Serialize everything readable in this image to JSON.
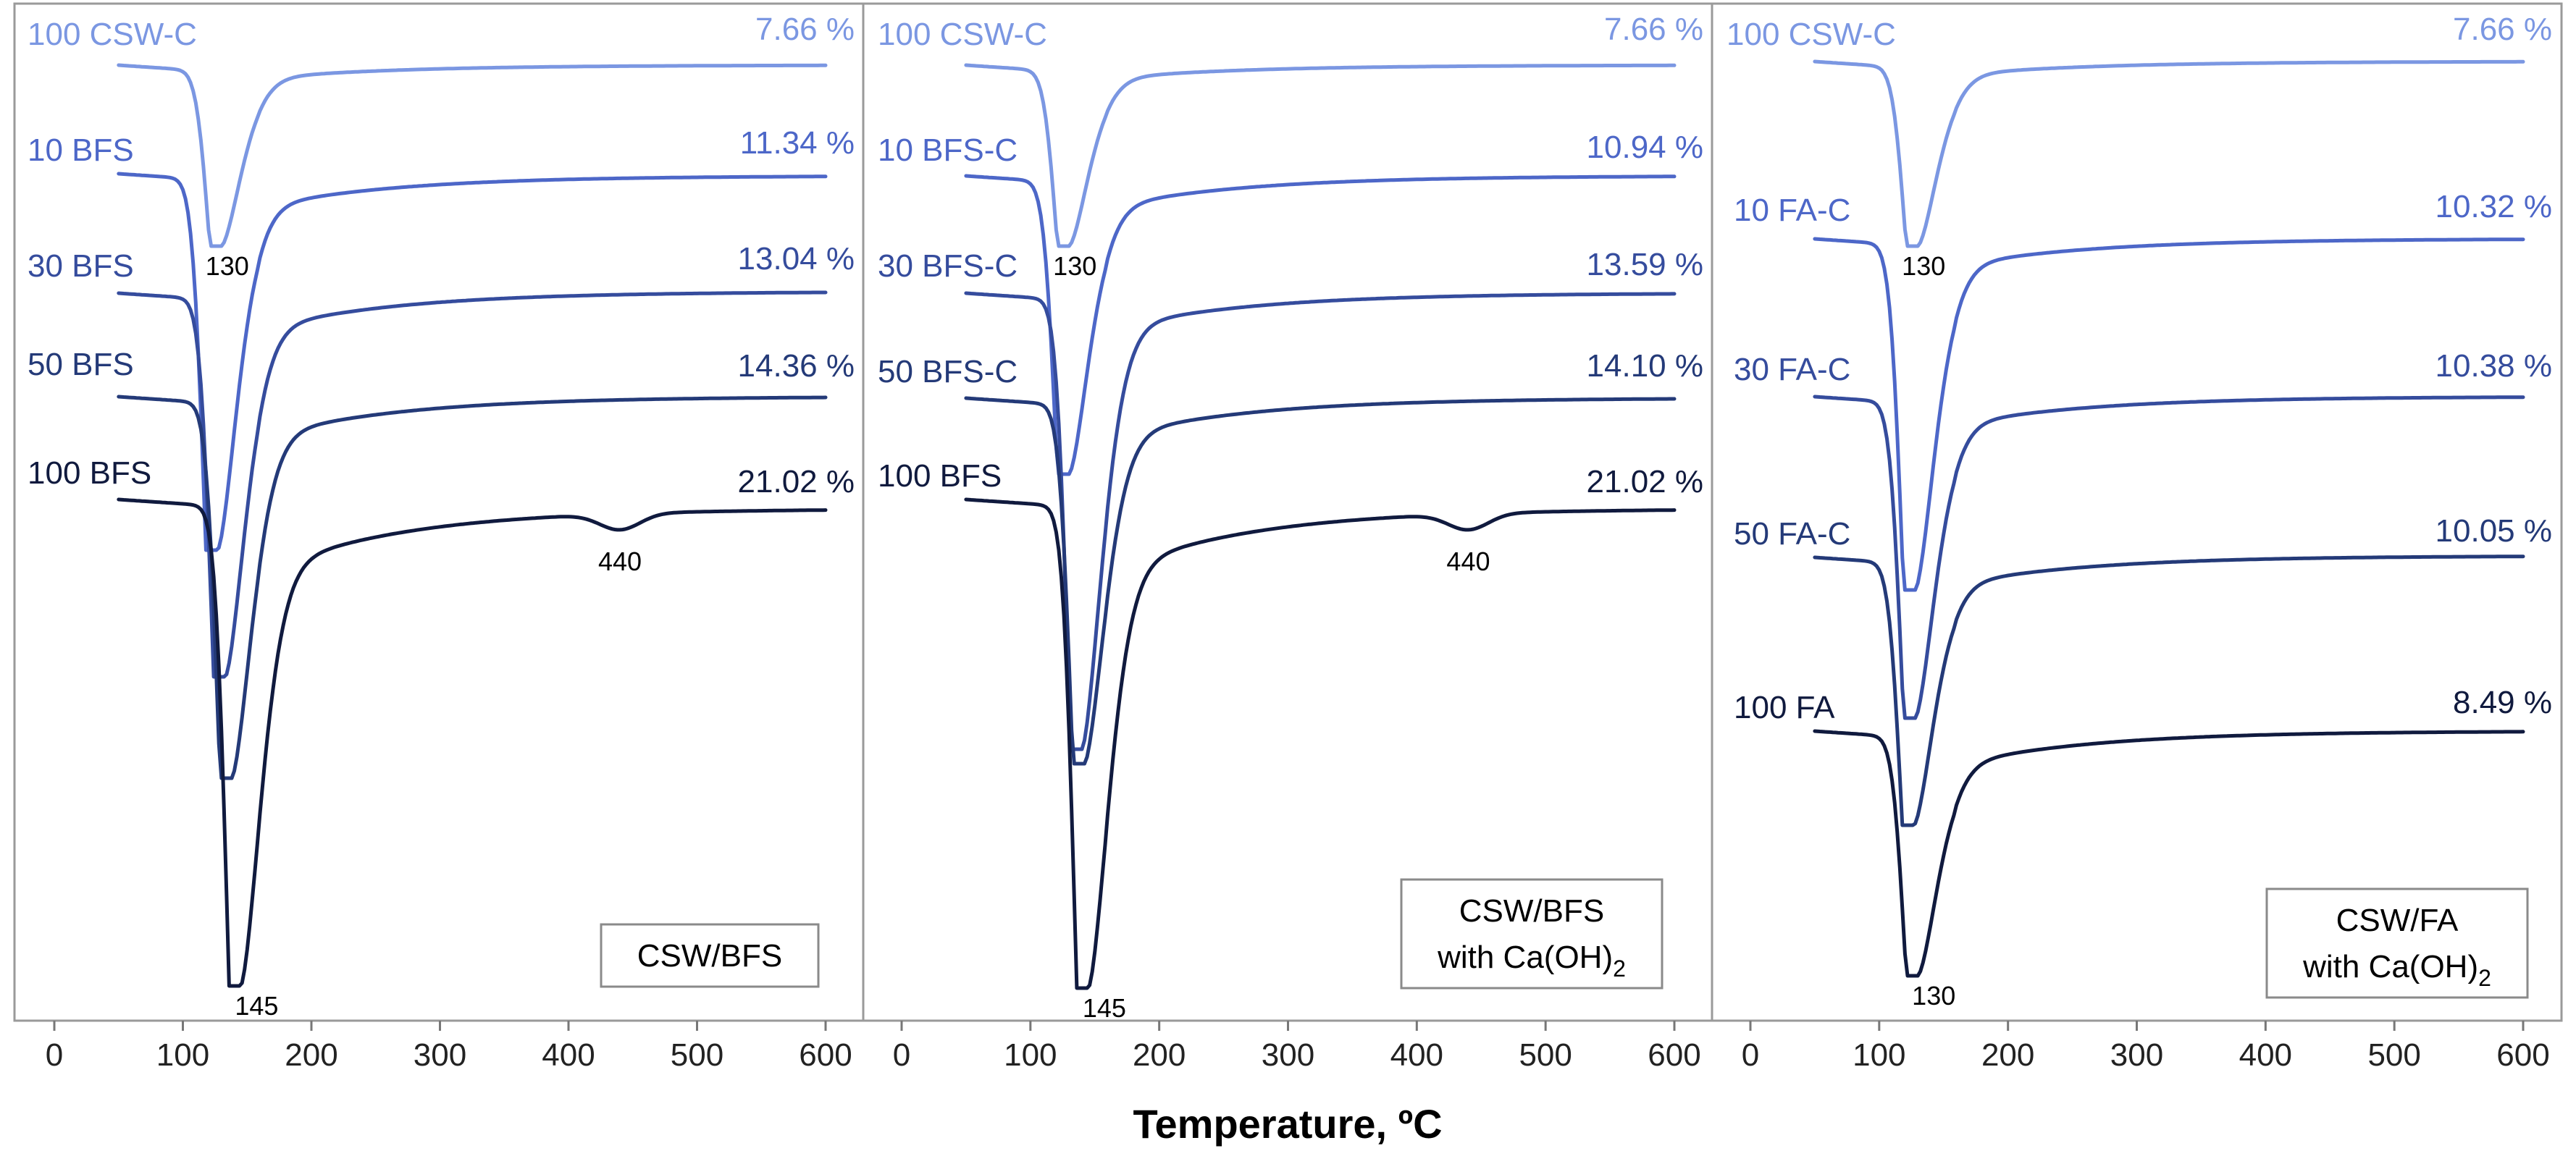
{
  "chart_data": [
    {
      "type": "line",
      "chart_kind": "DTG curves (stacked, offset)",
      "xlabel": "Temperature, ºC",
      "xlim": [
        0,
        600
      ],
      "x_ticks": [
        0,
        100,
        200,
        300,
        400,
        500,
        600
      ],
      "box_label": "CSW/BFS",
      "box_sub": "",
      "series": [
        {
          "name": "100 CSW-C",
          "total_loss": "7.66 %",
          "color": "#7b97e2",
          "peak_temp": 130,
          "peak_label": "130",
          "peak_depth": 0.58,
          "baseline": 0.0,
          "minor_peak": null
        },
        {
          "name": "10 BFS",
          "total_loss": "11.34 %",
          "color": "#4d67c8",
          "peak_temp": 127,
          "peak_label": "",
          "peak_depth": 1.6,
          "baseline": 1.0,
          "minor_peak": null
        },
        {
          "name": "30 BFS",
          "total_loss": "13.04 %",
          "color": "#354c9d",
          "peak_temp": 133,
          "peak_label": "",
          "peak_depth": 1.55,
          "baseline": 2.0,
          "minor_peak": null
        },
        {
          "name": "50 BFS",
          "total_loss": "14.36 %",
          "color": "#243a78",
          "peak_temp": 138,
          "peak_label": "",
          "peak_depth": 1.6,
          "baseline": 3.0,
          "minor_peak": null
        },
        {
          "name": "100 BFS",
          "total_loss": "21.02 %",
          "color": "#101a3e",
          "peak_temp": 145,
          "peak_label": "145",
          "peak_depth": 2.05,
          "baseline": 4.0,
          "minor_peak": {
            "temp": 440,
            "label": "440"
          }
        }
      ]
    },
    {
      "type": "line",
      "chart_kind": "DTG curves (stacked, offset)",
      "xlabel": "Temperature, ºC",
      "xlim": [
        0,
        600
      ],
      "x_ticks": [
        0,
        100,
        200,
        300,
        400,
        500,
        600
      ],
      "box_label": "CSW/BFS",
      "box_sub": "with Ca(OH)2",
      "series": [
        {
          "name": "100 CSW-C",
          "total_loss": "7.66 %",
          "color": "#7b97e2",
          "peak_temp": 130,
          "peak_label": "130",
          "peak_depth": 0.58,
          "baseline": 0.0,
          "minor_peak": null
        },
        {
          "name": "10 BFS-C",
          "total_loss": "10.94 %",
          "color": "#4d67c8",
          "peak_temp": 130,
          "peak_label": "",
          "peak_depth": 1.25,
          "baseline": 1.0,
          "minor_peak": null
        },
        {
          "name": "30 BFS-C",
          "total_loss": "13.59 %",
          "color": "#354c9d",
          "peak_temp": 140,
          "peak_label": "",
          "peak_depth": 1.55,
          "baseline": 2.0,
          "minor_peak": null
        },
        {
          "name": "50 BFS-C",
          "total_loss": "14.10 %",
          "color": "#243a78",
          "peak_temp": 142,
          "peak_label": "",
          "peak_depth": 1.5,
          "baseline": 3.0,
          "minor_peak": null
        },
        {
          "name": "100 BFS",
          "total_loss": "21.02 %",
          "color": "#101a3e",
          "peak_temp": 145,
          "peak_label": "145",
          "peak_depth": 2.05,
          "baseline": 4.0,
          "minor_peak": {
            "temp": 440,
            "label": "440"
          }
        }
      ]
    },
    {
      "type": "line",
      "chart_kind": "DTG curves (stacked, offset)",
      "xlabel": "Temperature, ºC",
      "xlim": [
        0,
        600
      ],
      "x_ticks": [
        0,
        100,
        200,
        300,
        400,
        500,
        600
      ],
      "box_label": "CSW/FA",
      "box_sub": "with Ca(OH)2",
      "series": [
        {
          "name": "100 CSW-C",
          "total_loss": "7.66 %",
          "color": "#7b97e2",
          "peak_temp": 130,
          "peak_label": "130",
          "peak_depth": 0.58,
          "baseline": 0.0,
          "minor_peak": null
        },
        {
          "name": "10 FA-C",
          "total_loss": "10.32 %",
          "color": "#4d67c8",
          "peak_temp": 128,
          "peak_label": "",
          "peak_depth": 1.08,
          "baseline": 1.0,
          "minor_peak": null
        },
        {
          "name": "30 FA-C",
          "total_loss": "10.38 %",
          "color": "#354c9d",
          "peak_temp": 128,
          "peak_label": "",
          "peak_depth": 1.05,
          "baseline": 2.0,
          "minor_peak": null
        },
        {
          "name": "50 FA-C",
          "total_loss": "10.05 %",
          "color": "#243a78",
          "peak_temp": 127,
          "peak_label": "",
          "peak_depth": 0.88,
          "baseline": 3.0,
          "minor_peak": null
        },
        {
          "name": "100 FA",
          "total_loss": "8.49 %",
          "color": "#101a3e",
          "peak_temp": 130,
          "peak_label": "130",
          "peak_depth": 0.9,
          "baseline": 4.0,
          "minor_peak": null
        }
      ]
    }
  ]
}
